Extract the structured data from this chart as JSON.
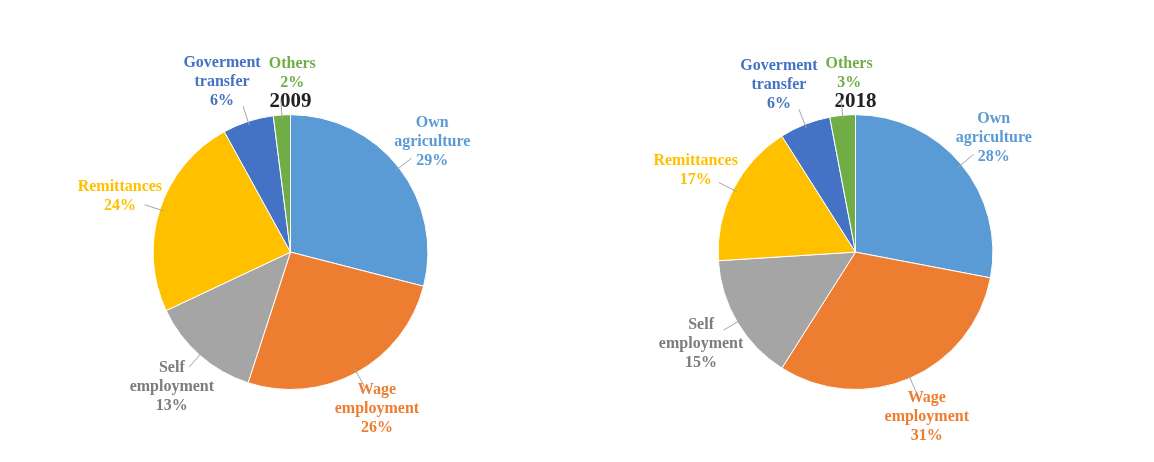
{
  "chart_data": [
    {
      "type": "pie",
      "title": "2009",
      "categories": [
        "Own agriculture",
        "Wage employment",
        "Self employment",
        "Remittances",
        "Goverment transfer",
        "Others"
      ],
      "values": [
        29,
        26,
        13,
        24,
        6,
        2
      ],
      "value_labels": [
        "29%",
        "26%",
        "13%",
        "24%",
        "6%",
        "2%"
      ],
      "colors": [
        "#5b9bd5",
        "#ed7d31",
        "#a5a5a5",
        "#ffc000",
        "#4472c4",
        "#70ad47"
      ],
      "legend": false
    },
    {
      "type": "pie",
      "title": "2018",
      "categories": [
        "Own agriculture",
        "Wage employment",
        "Self employment",
        "Remittances",
        "Goverment transfer",
        "Others"
      ],
      "values": [
        28,
        31,
        15,
        17,
        6,
        3
      ],
      "value_labels": [
        "28%",
        "31%",
        "15%",
        "17%",
        "6%",
        "3%"
      ],
      "colors": [
        "#5b9bd5",
        "#ed7d31",
        "#a5a5a5",
        "#ffc000",
        "#4472c4",
        "#70ad47"
      ],
      "legend": false
    }
  ]
}
